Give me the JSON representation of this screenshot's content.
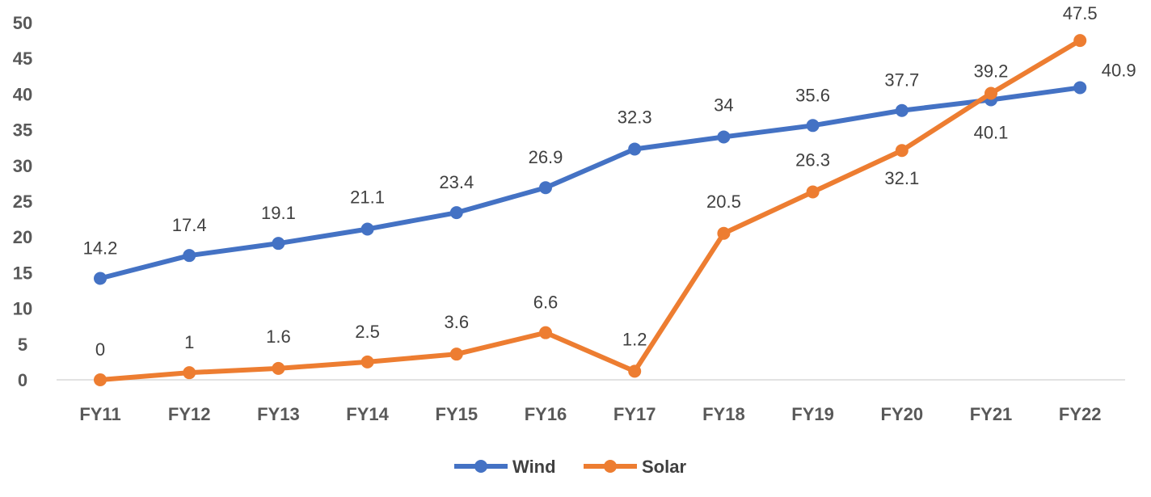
{
  "chart_data": {
    "type": "line",
    "title": "",
    "xlabel": "",
    "ylabel": "",
    "categories": [
      "FY11",
      "FY12",
      "FY13",
      "FY14",
      "FY15",
      "FY16",
      "FY17",
      "FY18",
      "FY19",
      "FY20",
      "FY21",
      "FY22"
    ],
    "ylim": [
      0,
      50
    ],
    "yticks": [
      "0",
      "5",
      "10",
      "15",
      "20",
      "25",
      "30",
      "35",
      "40",
      "45",
      "50"
    ],
    "grid": false,
    "legend": "bottom",
    "series": [
      {
        "name": "Wind",
        "color": "#4472C4",
        "values": [
          14.2,
          17.4,
          19.1,
          21.1,
          23.4,
          26.9,
          32.3,
          34,
          35.6,
          37.7,
          39.2,
          40.9
        ],
        "labels": [
          "14.2",
          "17.4",
          "19.1",
          "21.1",
          "23.4",
          "26.9",
          "32.3",
          "34",
          "35.6",
          "37.7",
          "39.2",
          "40.9"
        ]
      },
      {
        "name": "Solar",
        "color": "#ED7D31",
        "values": [
          0,
          1,
          1.6,
          2.5,
          3.6,
          6.6,
          1.2,
          20.5,
          26.3,
          32.1,
          40.1,
          47.5
        ],
        "labels": [
          "0",
          "1",
          "1.6",
          "2.5",
          "3.6",
          "6.6",
          "1.2",
          "20.5",
          "26.3",
          "32.1",
          "40.1",
          "47.5"
        ]
      }
    ]
  }
}
